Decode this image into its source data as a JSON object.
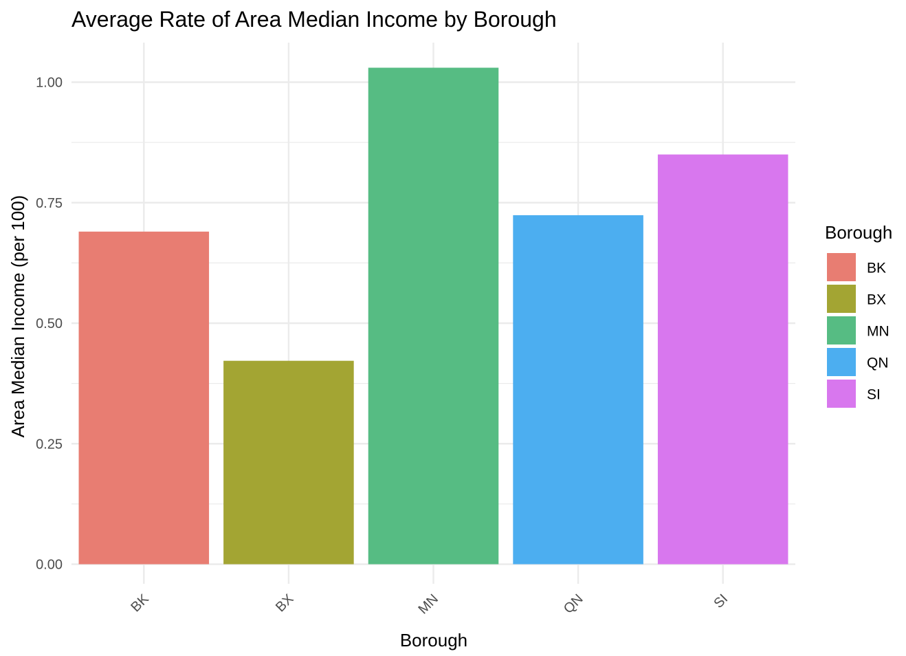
{
  "chart_data": {
    "type": "bar",
    "title": "Average Rate of Area Median Income by Borough",
    "xlabel": "Borough",
    "ylabel": "Area Median Income (per 100)",
    "categories": [
      "BK",
      "BX",
      "MN",
      "QN",
      "SI"
    ],
    "values": [
      0.69,
      0.422,
      1.03,
      0.724,
      0.85
    ],
    "colors": [
      "#E87D72",
      "#A3A533",
      "#56BC83",
      "#4CAEF0",
      "#D877EE"
    ],
    "ylim": [
      0,
      1.08
    ],
    "yticks": [
      0.0,
      0.25,
      0.5,
      0.75,
      1.0
    ],
    "ytick_labels": [
      "0.00",
      "0.25",
      "0.50",
      "0.75",
      "1.00"
    ],
    "grid": true,
    "legend": {
      "title": "Borough",
      "position": "right",
      "entries": [
        "BK",
        "BX",
        "MN",
        "QN",
        "SI"
      ]
    }
  }
}
